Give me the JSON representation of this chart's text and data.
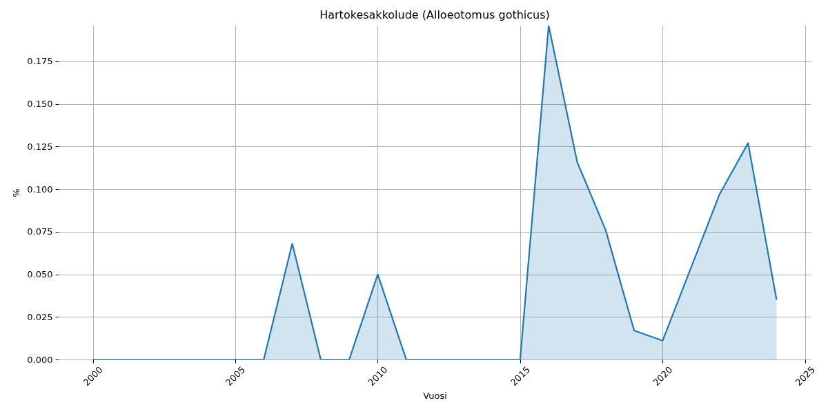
{
  "chart_data": {
    "type": "area",
    "title": "Hartokesakkolude (Alloeotomus gothicus)",
    "xlabel": "Vuosi",
    "ylabel": "%",
    "x": [
      2000,
      2001,
      2002,
      2003,
      2004,
      2005,
      2006,
      2007,
      2008,
      2009,
      2010,
      2011,
      2012,
      2013,
      2014,
      2015,
      2016,
      2017,
      2018,
      2019,
      2020,
      2021,
      2022,
      2023,
      2024
    ],
    "series": [
      {
        "color": "#1f77b4",
        "values": [
          0,
          0,
          0,
          0,
          0,
          0,
          0,
          0.068,
          0,
          0,
          0.05,
          0,
          0,
          0,
          0,
          0,
          0.196,
          0.116,
          0.076,
          0.017,
          0.011,
          0.054,
          0.097,
          0.127,
          0.035
        ]
      }
    ],
    "xlim": [
      1998.8,
      2025.2
    ],
    "ylim": [
      0,
      0.196
    ],
    "xticks": [
      2000,
      2005,
      2010,
      2015,
      2020,
      2025
    ],
    "yticks": [
      {
        "value": 0,
        "label": "0.000"
      },
      {
        "value": 0.025,
        "label": "0.025"
      },
      {
        "value": 0.05,
        "label": "0.050"
      },
      {
        "value": 0.075,
        "label": "0.075"
      },
      {
        "value": 0.1,
        "label": "0.100"
      },
      {
        "value": 0.125,
        "label": "0.125"
      },
      {
        "value": 0.15,
        "label": "0.150"
      },
      {
        "value": 0.175,
        "label": "0.175"
      }
    ],
    "grid": true
  }
}
